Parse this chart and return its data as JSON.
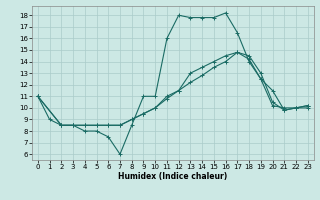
{
  "xlabel": "Humidex (Indice chaleur)",
  "xlim": [
    -0.5,
    23.5
  ],
  "ylim": [
    5.5,
    18.8
  ],
  "yticks": [
    6,
    7,
    8,
    9,
    10,
    11,
    12,
    13,
    14,
    15,
    16,
    17,
    18
  ],
  "xticks": [
    0,
    1,
    2,
    3,
    4,
    5,
    6,
    7,
    8,
    9,
    10,
    11,
    12,
    13,
    14,
    15,
    16,
    17,
    18,
    19,
    20,
    21,
    22,
    23
  ],
  "bg_color": "#cce8e4",
  "grid_color": "#aaccca",
  "line_color": "#1a6b64",
  "lines": [
    {
      "x": [
        0,
        1,
        2,
        3,
        4,
        5,
        6,
        7,
        8,
        9,
        10,
        11,
        12,
        13,
        14,
        15,
        16,
        17,
        18,
        19,
        20,
        21,
        22,
        23
      ],
      "y": [
        11,
        9,
        8.5,
        8.5,
        8,
        8,
        7.5,
        6,
        8.5,
        11,
        11,
        16,
        18,
        17.8,
        17.8,
        17.8,
        18.2,
        16.5,
        14,
        12.5,
        11.5,
        9.8,
        10,
        10
      ]
    },
    {
      "x": [
        0,
        2,
        3,
        4,
        5,
        6,
        7,
        8,
        9,
        10,
        11,
        12,
        13,
        14,
        15,
        16,
        17,
        18,
        19,
        20,
        21,
        22,
        23
      ],
      "y": [
        11,
        8.5,
        8.5,
        8.5,
        8.5,
        8.5,
        8.5,
        9,
        9.5,
        10,
        11,
        11.5,
        13,
        13.5,
        14,
        14.5,
        14.8,
        14.2,
        12.5,
        10.2,
        10,
        10,
        10.2
      ]
    },
    {
      "x": [
        0,
        2,
        3,
        4,
        5,
        6,
        7,
        8,
        9,
        10,
        11,
        12,
        13,
        14,
        15,
        16,
        17,
        18,
        19,
        20,
        21,
        22,
        23
      ],
      "y": [
        11,
        8.5,
        8.5,
        8.5,
        8.5,
        8.5,
        8.5,
        9,
        9.5,
        10,
        10.8,
        11.5,
        12.2,
        12.8,
        13.5,
        14,
        14.8,
        14.5,
        13,
        10.5,
        9.8,
        10,
        10.2
      ]
    }
  ]
}
